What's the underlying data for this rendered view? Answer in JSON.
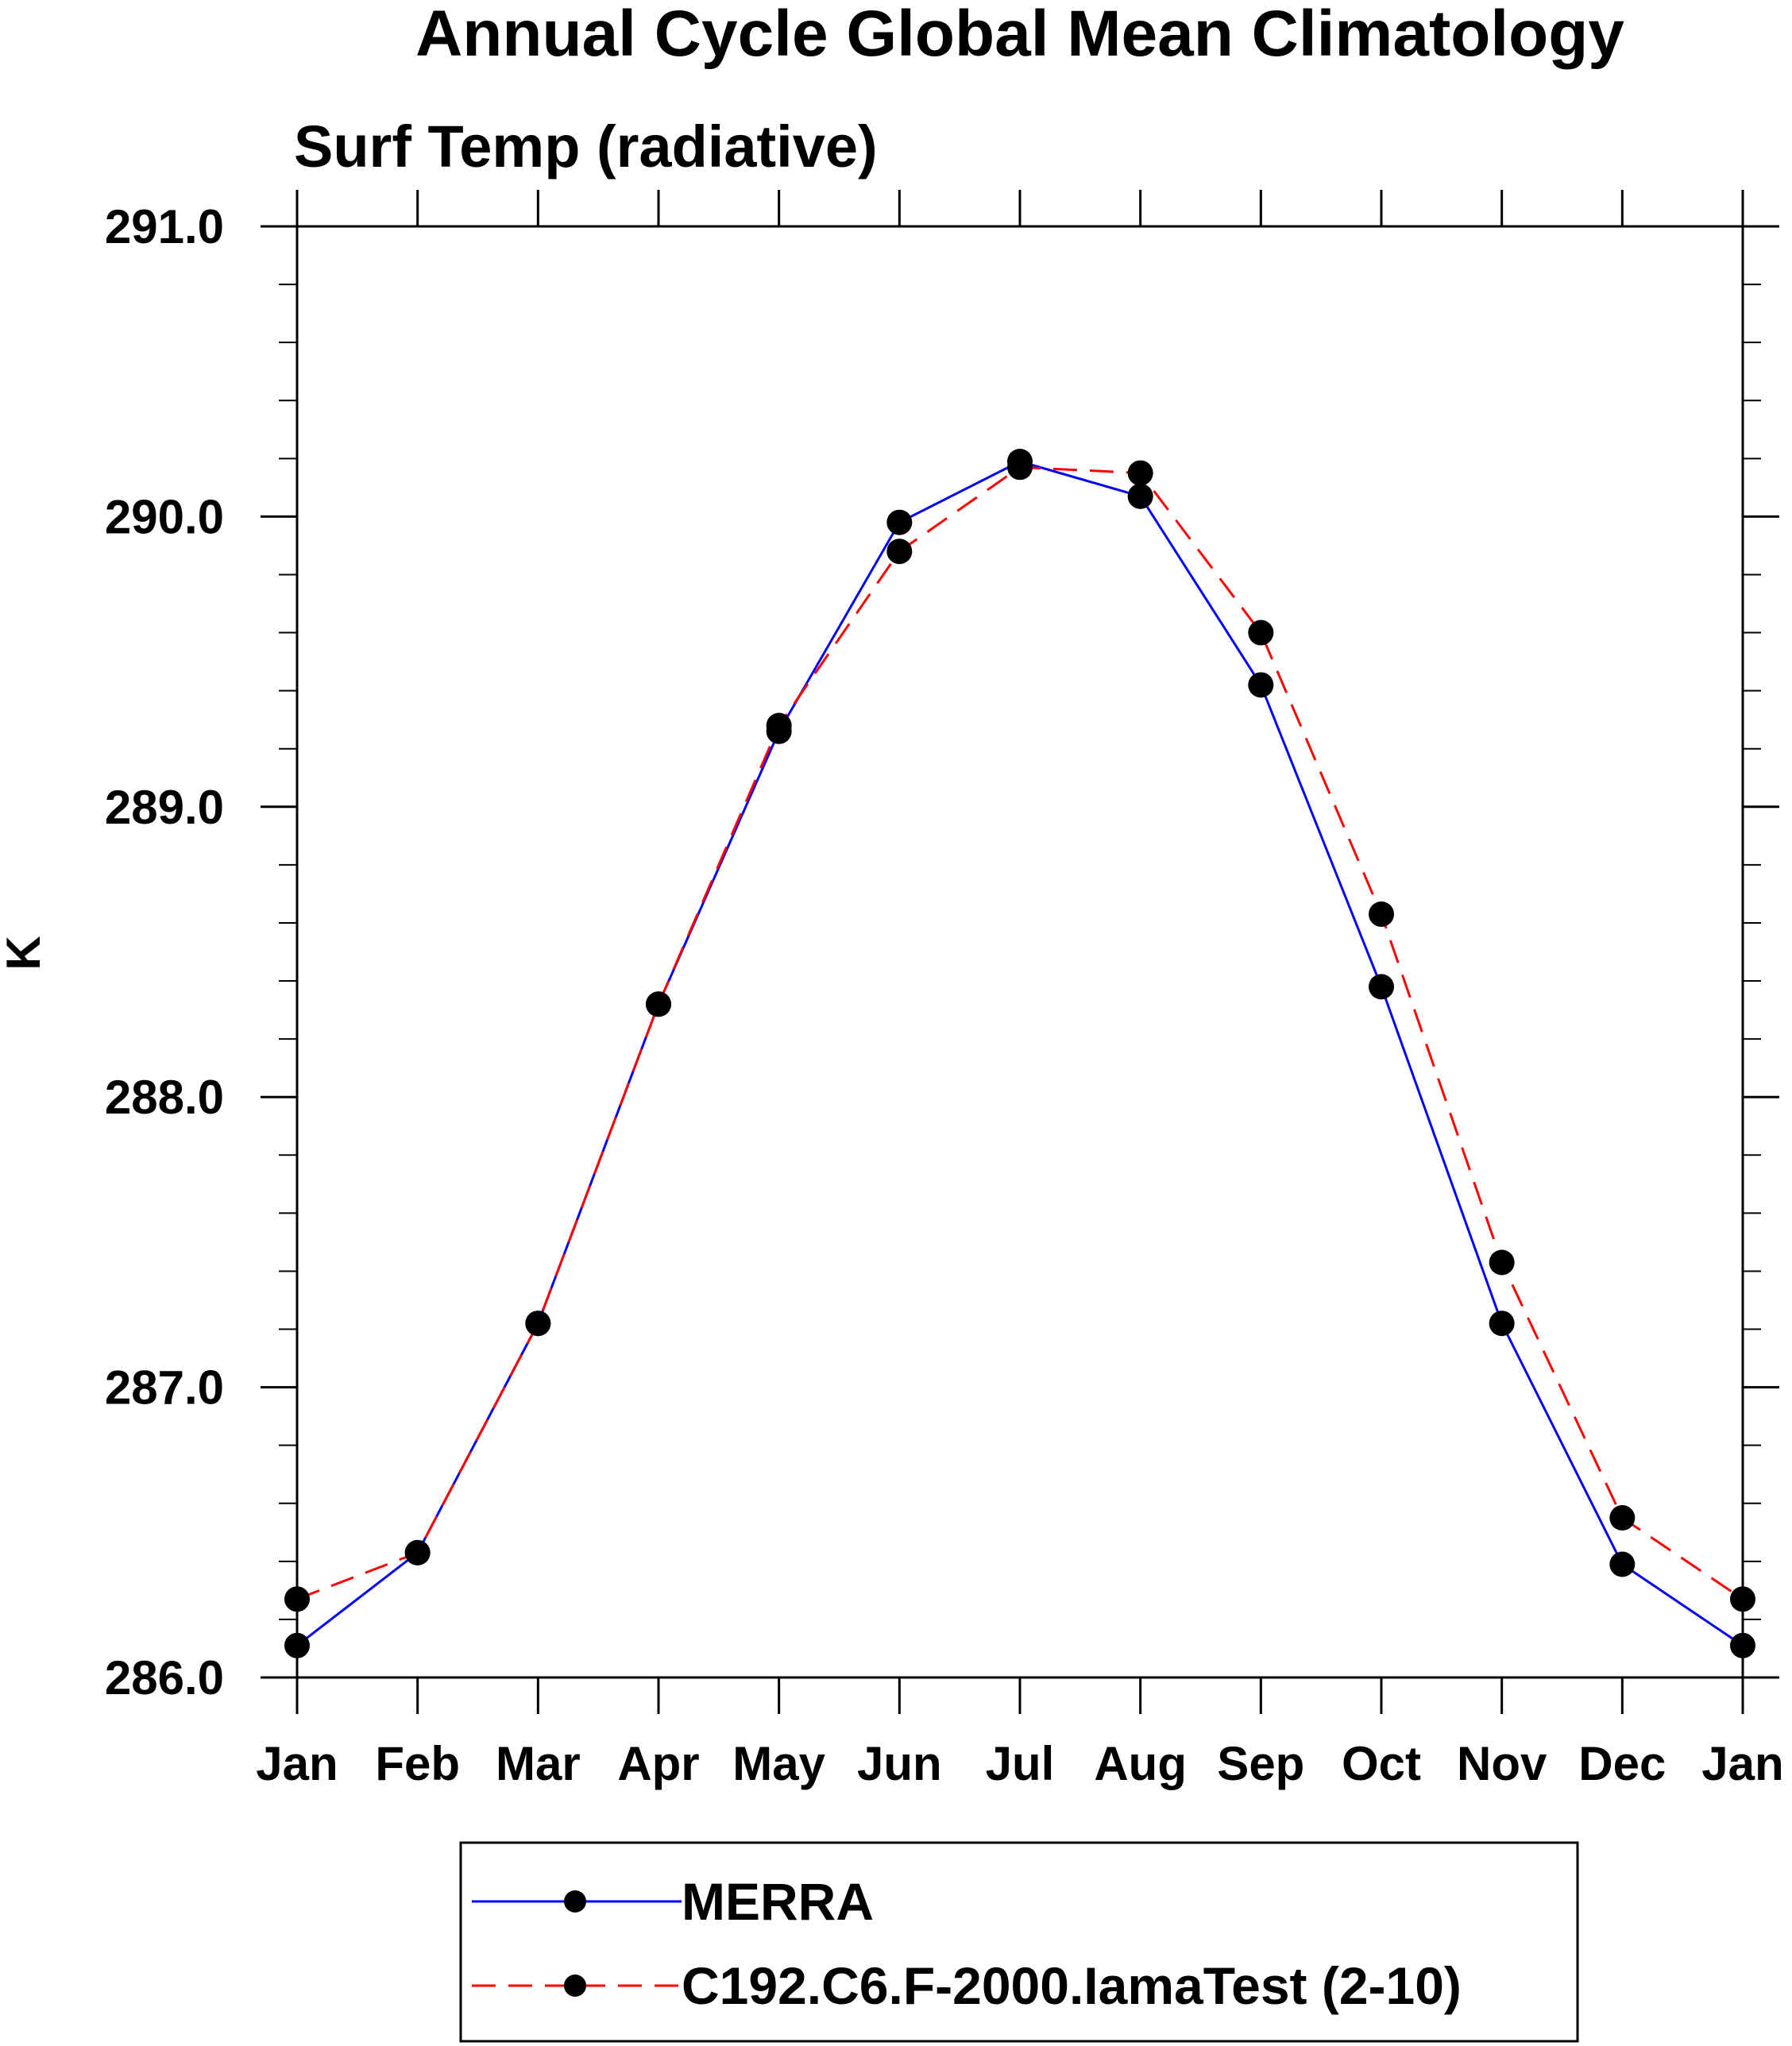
{
  "chart_data": {
    "type": "line",
    "title": "Annual Cycle Global Mean Climatology",
    "subtitle": "Surf Temp (radiative)",
    "xlabel": "",
    "ylabel": "K",
    "categories": [
      "Jan",
      "Feb",
      "Mar",
      "Apr",
      "May",
      "Jun",
      "Jul",
      "Aug",
      "Sep",
      "Oct",
      "Nov",
      "Dec",
      "Jan"
    ],
    "ylim": [
      286.0,
      291.0
    ],
    "yticks": [
      "286.0",
      "287.0",
      "288.0",
      "289.0",
      "290.0",
      "291.0"
    ],
    "yminor_step": 0.2,
    "grid": false,
    "legend_position": "bottom",
    "series": [
      {
        "name": "MERRA",
        "color": "#0000ff",
        "dash": "solid",
        "marker": "filled-circle",
        "values": [
          286.11,
          286.43,
          287.22,
          288.32,
          289.26,
          289.98,
          290.19,
          290.07,
          289.42,
          288.38,
          287.22,
          286.39,
          286.11
        ]
      },
      {
        "name": "C192.C6.F-2000.IamaTest (2-10)",
        "color": "#ff0000",
        "dash": "dashed",
        "marker": "filled-circle",
        "values": [
          286.27,
          286.43,
          287.22,
          288.32,
          289.28,
          289.88,
          290.17,
          290.15,
          289.6,
          288.63,
          287.43,
          286.55,
          286.27
        ]
      }
    ]
  }
}
